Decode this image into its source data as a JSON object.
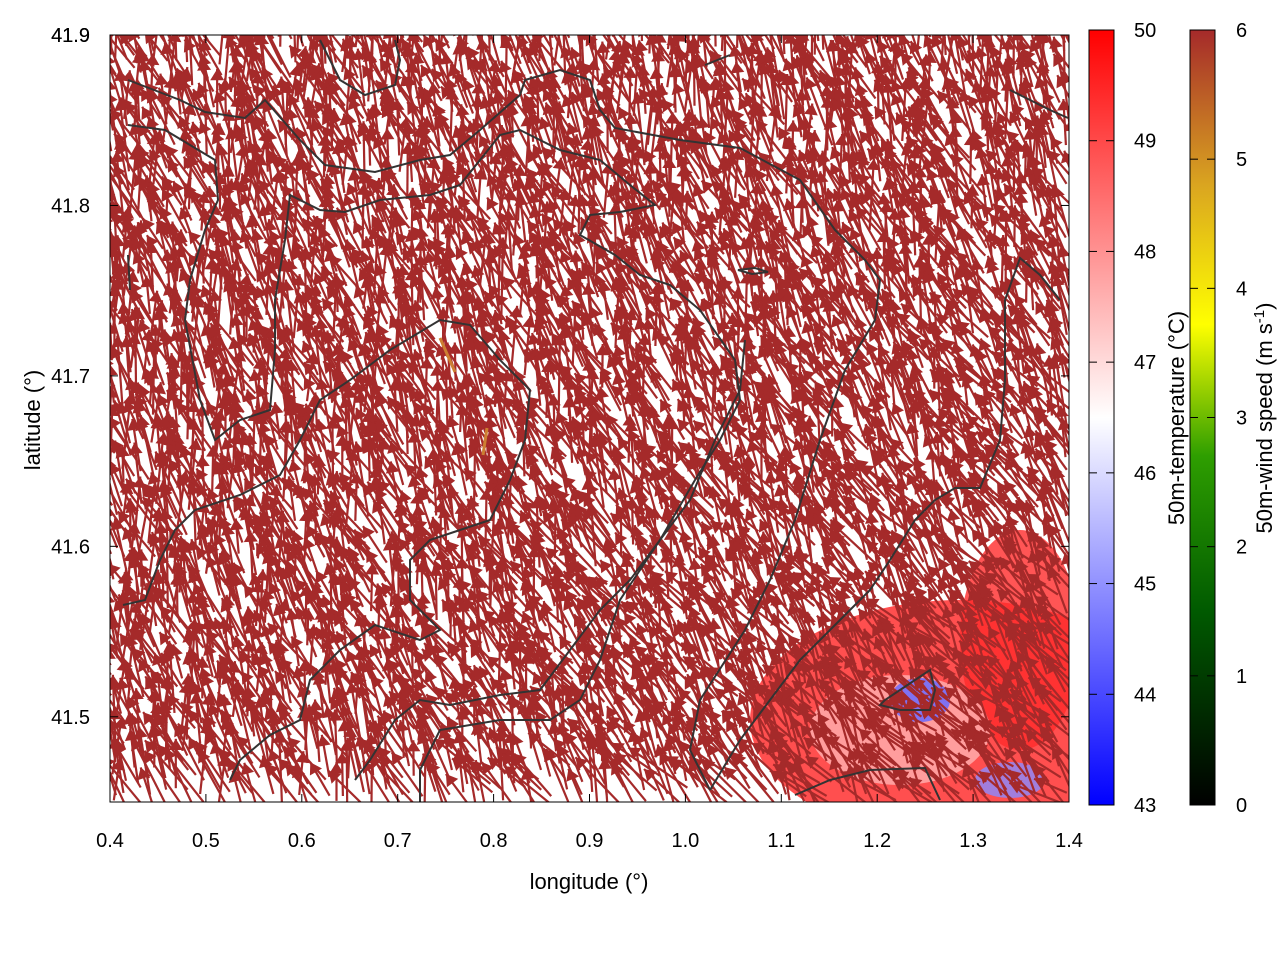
{
  "chart_data": {
    "type": "vector-field",
    "xlabel": "longitude (°)",
    "ylabel": "latitude (°)",
    "xlim": [
      0.4,
      1.4
    ],
    "ylim": [
      41.45,
      41.9
    ],
    "xticks": [
      "0.4",
      "0.5",
      "0.6",
      "0.7",
      "0.8",
      "0.9",
      "1.0",
      "1.1",
      "1.2",
      "1.3",
      "1.4"
    ],
    "yticks": [
      "41.5",
      "41.6",
      "41.7",
      "41.8",
      "41.9"
    ],
    "temperature_colorbar": {
      "label": "50m-temperature (°C)",
      "range": [
        43,
        50
      ],
      "ticks": [
        "43",
        "44",
        "45",
        "46",
        "47",
        "48",
        "49",
        "50"
      ],
      "colors": [
        "#0000ff",
        "#ffffff",
        "#ff0000"
      ]
    },
    "windspeed_colorbar": {
      "label_main": "50m-wind speed (m s",
      "label_sup": "-1",
      "label_end": ")",
      "range": [
        0,
        6
      ],
      "ticks": [
        "0",
        "1",
        "2",
        "3",
        "4",
        "5",
        "6"
      ],
      "colors": [
        "#000000",
        "#006400",
        "#2e9e00",
        "#ffff00",
        "#daa520",
        "#cd7f32",
        "#a52a2a"
      ]
    },
    "arrow_color": "#a52a2a",
    "contour_color": "#333333"
  }
}
